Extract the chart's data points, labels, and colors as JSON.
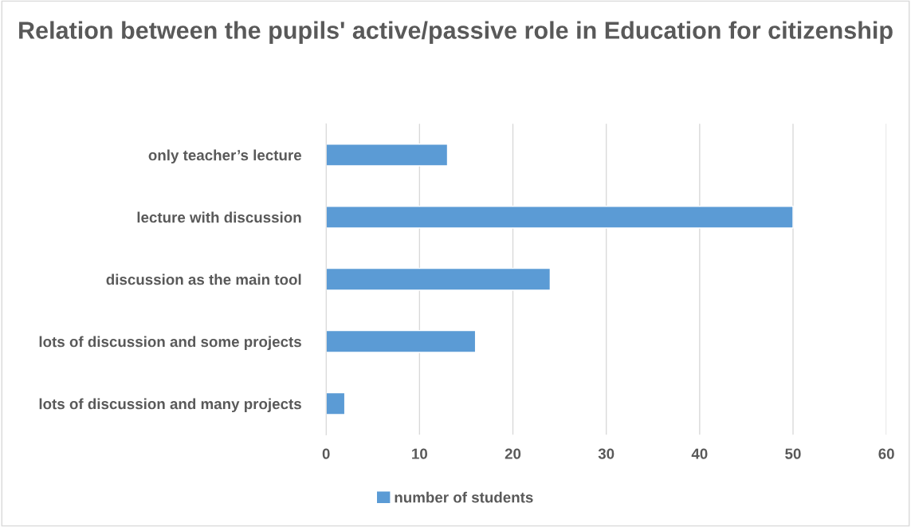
{
  "chart_data": {
    "type": "bar",
    "orientation": "horizontal",
    "title": "Relation between the pupils' active/passive role in Education for citizenship",
    "categories": [
      "only teacher’s lecture",
      "lecture with discussion",
      "discussion as the main tool",
      "lots of discussion and some projects",
      "lots of discussion and many projects"
    ],
    "series": [
      {
        "name": "number of students",
        "color": "#5b9bd5",
        "values": [
          13,
          50,
          24,
          16,
          2
        ]
      }
    ],
    "xlim": [
      0,
      60
    ],
    "xticks": [
      0,
      10,
      20,
      30,
      40,
      50,
      60
    ],
    "grid": "x",
    "legend": "bottom"
  }
}
